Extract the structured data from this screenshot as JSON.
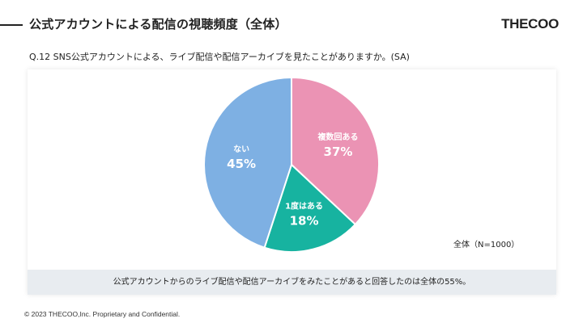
{
  "header": {
    "title": "公式アカウントによる配信の視聴頻度（全体）",
    "logo_text": "THECOO"
  },
  "question": "Q.12 SNS公式アカウントによる、ライブ配信や配信アーカイブを見たことがありますか。(SA)",
  "chart_data": {
    "type": "pie",
    "slices": [
      {
        "label": "複数回ある",
        "value": 37,
        "display": "37%",
        "color": "#eb93b4"
      },
      {
        "label": "1度はある",
        "value": 18,
        "display": "18%",
        "color": "#17b3a0"
      },
      {
        "label": "ない",
        "value": 45,
        "display": "45%",
        "color": "#7eb0e3"
      }
    ],
    "start": "12 o'clock",
    "direction": "clockwise",
    "sample_note": "全体（N=1000）"
  },
  "summary": "公式アカウントからのライブ配信や配信アーカイブをみたことがあると回答したのは全体の55%。",
  "footer": "© 2023 THECOO,Inc. Proprietary and Confidential."
}
